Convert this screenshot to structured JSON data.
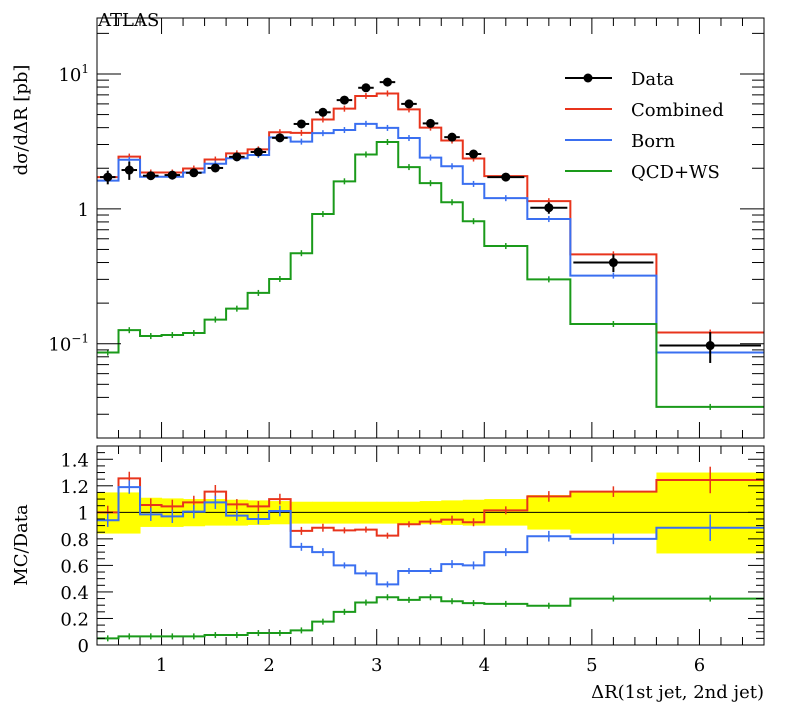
{
  "chart_data": [
    {
      "type": "line",
      "title": "ATLAS",
      "xlabel": "ΔR(1st jet, 2nd jet)",
      "ylabel": "dσ/dΔR [pb]",
      "yscale": "log",
      "xlim": [
        0.4,
        6.6
      ],
      "ylim": [
        0.02,
        26
      ],
      "yticks": [
        {
          "v": 10,
          "label": "10",
          "sup": "1"
        },
        {
          "v": 1,
          "label": "1",
          "sup": ""
        },
        {
          "v": 0.1,
          "label": "10",
          "sup": "−1"
        }
      ],
      "legend_position": "top-right",
      "bin_edges": [
        0.4,
        0.6,
        0.8,
        1.0,
        1.2,
        1.4,
        1.6,
        1.8,
        2.0,
        2.2,
        2.4,
        2.6,
        2.8,
        3.0,
        3.2,
        3.4,
        3.6,
        3.8,
        4.0,
        4.4,
        4.8,
        5.6,
        6.6
      ],
      "data": {
        "name": "Data",
        "color": "#000000",
        "values": [
          1.72,
          1.94,
          1.76,
          1.78,
          1.85,
          2.01,
          2.43,
          2.64,
          3.36,
          4.26,
          5.2,
          6.4,
          7.9,
          8.7,
          6.0,
          4.3,
          3.4,
          2.55,
          1.72,
          1.02,
          0.4,
          0.097
        ],
        "errors": [
          0.2,
          0.3,
          0.12,
          0.12,
          0.12,
          0.12,
          0.12,
          0.12,
          0.15,
          0.15,
          0.2,
          0.25,
          0.3,
          0.3,
          0.25,
          0.2,
          0.15,
          0.12,
          0.12,
          0.1,
          0.06,
          0.025
        ]
      },
      "series": [
        {
          "name": "Combined",
          "color": "#e8341c",
          "values": [
            1.72,
            2.44,
            1.86,
            1.86,
            1.99,
            2.32,
            2.58,
            2.76,
            3.7,
            3.66,
            4.6,
            5.53,
            6.87,
            7.17,
            5.46,
            4.0,
            3.21,
            2.36,
            1.75,
            1.14,
            0.46,
            0.121
          ]
        },
        {
          "name": "Born",
          "color": "#3a6ff0",
          "values": [
            1.62,
            2.31,
            1.73,
            1.73,
            1.86,
            2.16,
            2.37,
            2.51,
            3.39,
            3.15,
            3.64,
            3.84,
            4.27,
            3.98,
            3.35,
            2.4,
            2.07,
            1.53,
            1.2,
            0.84,
            0.32,
            0.086
          ]
        },
        {
          "name": "QCD+WS",
          "color": "#1a9a1a",
          "values": [
            0.086,
            0.126,
            0.114,
            0.116,
            0.12,
            0.151,
            0.182,
            0.238,
            0.302,
            0.469,
            0.915,
            1.6,
            2.53,
            3.13,
            2.04,
            1.55,
            1.12,
            0.81,
            0.53,
            0.3,
            0.14,
            0.034
          ]
        }
      ]
    },
    {
      "type": "line",
      "xlabel": "ΔR(1st jet, 2nd jet)",
      "ylabel": "MC/Data",
      "xlim": [
        0.4,
        6.6
      ],
      "ylim": [
        0,
        1.5
      ],
      "xticks": [
        "1",
        "2",
        "3",
        "4",
        "5",
        "6"
      ],
      "yticks": [
        "0",
        "0.2",
        "0.4",
        "0.6",
        "0.8",
        "1",
        "1.2",
        "1.4"
      ],
      "reference_line": 1,
      "band_color": "#ffff00",
      "band_low": [
        0.84,
        0.84,
        0.89,
        0.89,
        0.895,
        0.9,
        0.9,
        0.905,
        0.91,
        0.915,
        0.915,
        0.915,
        0.915,
        0.915,
        0.915,
        0.91,
        0.905,
        0.9,
        0.9,
        0.87,
        0.84,
        0.69
      ],
      "band_high": [
        1.15,
        1.15,
        1.11,
        1.105,
        1.1,
        1.1,
        1.095,
        1.09,
        1.085,
        1.08,
        1.08,
        1.08,
        1.08,
        1.08,
        1.08,
        1.085,
        1.09,
        1.095,
        1.1,
        1.13,
        1.15,
        1.3
      ],
      "series": [
        {
          "name": "Combined",
          "color": "#e8341c",
          "values": [
            1.0,
            1.256,
            1.055,
            1.045,
            1.075,
            1.156,
            1.06,
            1.045,
            1.1,
            0.86,
            0.884,
            0.864,
            0.87,
            0.824,
            0.91,
            0.93,
            0.945,
            0.925,
            1.015,
            1.12,
            1.156,
            1.244
          ],
          "errors": [
            0.05,
            0.05,
            0.05,
            0.05,
            0.05,
            0.05,
            0.04,
            0.04,
            0.04,
            0.03,
            0.03,
            0.02,
            0.02,
            0.02,
            0.02,
            0.02,
            0.03,
            0.03,
            0.03,
            0.04,
            0.04,
            0.1
          ]
        },
        {
          "name": "Born",
          "color": "#3a6ff0",
          "values": [
            0.94,
            1.19,
            0.985,
            0.97,
            1.005,
            1.075,
            0.975,
            0.95,
            1.01,
            0.74,
            0.7,
            0.6,
            0.54,
            0.457,
            0.558,
            0.558,
            0.61,
            0.6,
            0.7,
            0.82,
            0.8,
            0.884
          ],
          "errors": [
            0.05,
            0.05,
            0.05,
            0.05,
            0.05,
            0.05,
            0.04,
            0.04,
            0.04,
            0.03,
            0.03,
            0.02,
            0.02,
            0.02,
            0.02,
            0.02,
            0.03,
            0.03,
            0.03,
            0.04,
            0.04,
            0.1
          ]
        },
        {
          "name": "QCD+WS",
          "color": "#1a9a1a",
          "values": [
            0.05,
            0.065,
            0.065,
            0.065,
            0.065,
            0.075,
            0.075,
            0.09,
            0.09,
            0.11,
            0.176,
            0.25,
            0.32,
            0.36,
            0.34,
            0.36,
            0.33,
            0.316,
            0.31,
            0.296,
            0.35,
            0.35
          ],
          "errors": [
            0.01,
            0.005,
            0.005,
            0.005,
            0.005,
            0.005,
            0.005,
            0.005,
            0.005,
            0.005,
            0.005,
            0.005,
            0.005,
            0.005,
            0.005,
            0.005,
            0.005,
            0.005,
            0.005,
            0.005,
            0.01,
            0.02
          ]
        }
      ]
    }
  ]
}
